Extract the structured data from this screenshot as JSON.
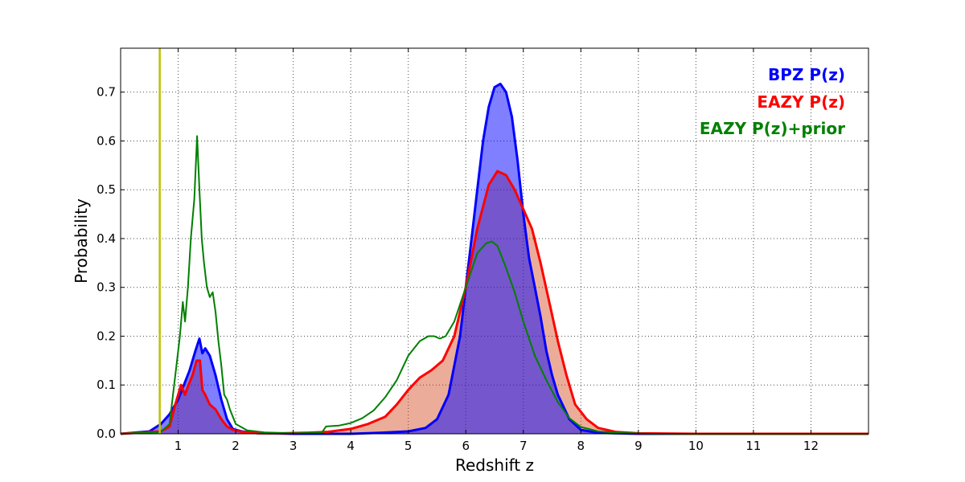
{
  "chart_data": {
    "type": "area",
    "title": "",
    "xlabel": "Redshift z",
    "ylabel": "Probability",
    "xlim": [
      0,
      13
    ],
    "ylim": [
      0,
      0.79
    ],
    "xticks": [
      1,
      2,
      3,
      4,
      5,
      6,
      7,
      8,
      9,
      10,
      11,
      12
    ],
    "yticks": [
      0.0,
      0.1,
      0.2,
      0.3,
      0.4,
      0.5,
      0.6,
      0.7
    ],
    "ytick_labels": [
      "0.0",
      "0.1",
      "0.2",
      "0.3",
      "0.4",
      "0.5",
      "0.6",
      "0.7"
    ],
    "grid": true,
    "legend_position": "top-right",
    "vline": {
      "x": 0.68,
      "color": "#bfbf00"
    },
    "series": [
      {
        "name": "BPZ P(z)",
        "color": "#0000ff",
        "fill": "#0000ff",
        "fill_alpha": 0.5,
        "x": [
          0,
          0.5,
          0.7,
          0.85,
          1.0,
          1.1,
          1.2,
          1.3,
          1.37,
          1.42,
          1.47,
          1.55,
          1.65,
          1.75,
          1.85,
          1.95,
          2.1,
          2.3,
          2.6,
          3.0,
          6.0,
          13.0
        ],
        "values": [
          0.0,
          0.005,
          0.02,
          0.04,
          0.07,
          0.1,
          0.13,
          0.17,
          0.195,
          0.165,
          0.175,
          0.16,
          0.12,
          0.07,
          0.03,
          0.01,
          0.005,
          0.002,
          0.001,
          0.0,
          0.0,
          0.0
        ],
        "x2": [
          3.0,
          4.0,
          4.5,
          5.0,
          5.3,
          5.5,
          5.7,
          5.9,
          6.0,
          6.1,
          6.2,
          6.3,
          6.4,
          6.5,
          6.6,
          6.7,
          6.8,
          6.9,
          7.0,
          7.1,
          7.2,
          7.3,
          7.4,
          7.5,
          7.6,
          7.8,
          8.0,
          8.3,
          9.0,
          13.0
        ],
        "values2": [
          0.0,
          0.0,
          0.002,
          0.005,
          0.012,
          0.03,
          0.08,
          0.2,
          0.3,
          0.4,
          0.5,
          0.6,
          0.67,
          0.71,
          0.717,
          0.7,
          0.65,
          0.56,
          0.45,
          0.36,
          0.3,
          0.24,
          0.17,
          0.12,
          0.08,
          0.03,
          0.008,
          0.002,
          0.0,
          0.0
        ]
      },
      {
        "name": "EAZY P(z)",
        "color": "#ff0000",
        "fill": "#cc3300",
        "fill_alpha": 0.4,
        "x": [
          0,
          0.7,
          0.85,
          0.95,
          1.05,
          1.12,
          1.18,
          1.25,
          1.32,
          1.38,
          1.42,
          1.47,
          1.55,
          1.65,
          1.75,
          1.85,
          1.95,
          2.1,
          2.4,
          2.8,
          3.2,
          3.6,
          4.0,
          4.3,
          4.6,
          4.8,
          5.0,
          5.2,
          5.4,
          5.6,
          5.8,
          6.0,
          6.2,
          6.4,
          6.55,
          6.7,
          6.85,
          7.0,
          7.15,
          7.3,
          7.45,
          7.6,
          7.75,
          7.9,
          8.1,
          8.3,
          8.6,
          9.0,
          10.0,
          13.0
        ],
        "values": [
          0.0,
          0.005,
          0.015,
          0.06,
          0.1,
          0.08,
          0.1,
          0.12,
          0.15,
          0.15,
          0.09,
          0.08,
          0.06,
          0.05,
          0.03,
          0.015,
          0.008,
          0.004,
          0.001,
          0.001,
          0.002,
          0.004,
          0.01,
          0.02,
          0.035,
          0.06,
          0.09,
          0.115,
          0.13,
          0.15,
          0.2,
          0.3,
          0.42,
          0.51,
          0.538,
          0.53,
          0.5,
          0.46,
          0.42,
          0.35,
          0.27,
          0.19,
          0.12,
          0.06,
          0.03,
          0.012,
          0.004,
          0.001,
          0.0,
          0.0
        ]
      },
      {
        "name": "EAZY P(z)+prior",
        "color": "#008000",
        "x": [
          0,
          0.7,
          0.85,
          0.95,
          1.03,
          1.08,
          1.12,
          1.17,
          1.22,
          1.28,
          1.33,
          1.37,
          1.41,
          1.45,
          1.5,
          1.55,
          1.6,
          1.65,
          1.7,
          1.75,
          1.8,
          1.85,
          1.9,
          2.0,
          2.2,
          2.5,
          3.0,
          3.5,
          3.57,
          3.8,
          4.0,
          4.2,
          4.4,
          4.6,
          4.8,
          5.0,
          5.2,
          5.35,
          5.45,
          5.55,
          5.65,
          5.8,
          6.0,
          6.2,
          6.35,
          6.45,
          6.55,
          6.7,
          6.85,
          7.0,
          7.2,
          7.4,
          7.6,
          7.8,
          8.0,
          8.3,
          8.7,
          9.2,
          13.0
        ],
        "values": [
          0.0,
          0.004,
          0.02,
          0.12,
          0.2,
          0.27,
          0.23,
          0.3,
          0.4,
          0.48,
          0.61,
          0.5,
          0.4,
          0.35,
          0.3,
          0.28,
          0.29,
          0.25,
          0.19,
          0.14,
          0.08,
          0.07,
          0.05,
          0.02,
          0.007,
          0.003,
          0.001,
          0.003,
          0.015,
          0.017,
          0.022,
          0.032,
          0.048,
          0.075,
          0.11,
          0.16,
          0.19,
          0.2,
          0.2,
          0.195,
          0.2,
          0.23,
          0.3,
          0.37,
          0.39,
          0.394,
          0.385,
          0.34,
          0.29,
          0.23,
          0.16,
          0.11,
          0.065,
          0.032,
          0.014,
          0.005,
          0.002,
          0.0,
          0.0
        ]
      }
    ]
  }
}
